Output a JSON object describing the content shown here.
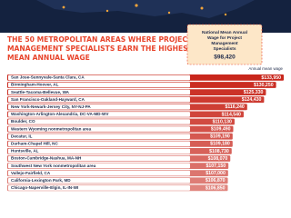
{
  "chart_data": {
    "type": "bar",
    "orientation": "horizontal",
    "title": "THE 50 METROPOLITAN AREAS WHERE PROJECT MANAGEMENT SPECIALISTS EARN THE HIGHEST MEAN ANNUAL WAGE",
    "callout": {
      "text": "National Mean Annual Wage for Project Management Specialists",
      "value": 98420,
      "value_label": "$98,420"
    },
    "value_axis_label": "Annual mean wage",
    "categories": [
      "San Jose-Sunnyvale-Santa Clara, CA",
      "Birmingham-Hoover, AL",
      "Seattle-Tacoma-Bellevue, WA",
      "San Francisco-Oakland-Hayward, CA",
      "New York-Newark-Jersey City, NY-NJ-PA",
      "Washington-Arlington-Alexandria, DC-VA-MD-WV",
      "Boulder, CO",
      "Western Wyoming nonmetropolitan area",
      "Decatur, IL",
      "Durham-Chapel Hill, NC",
      "Huntsville, AL",
      "Boston-Cambridge-Nashua, MA-NH",
      "Southwest New York nonmetropolitan area",
      "Vallejo-Fairfield, CA",
      "California-Lexington Park, MD",
      "Chicago-Naperville-Elgin, IL-IN-WI"
    ],
    "values": [
      133950,
      130250,
      125330,
      124430,
      116240,
      114540,
      110130,
      109490,
      109190,
      109180,
      108730,
      108070,
      107150,
      107000,
      106870,
      106850
    ],
    "value_labels": [
      "$133,950",
      "$130,250",
      "$125,330",
      "$124,430",
      "$116,240",
      "$114,540",
      "$110,130",
      "$109,490",
      "$109,190",
      "$109,180",
      "$108,730",
      "$108,070",
      "$107,150",
      "$107,000",
      "$106,870",
      "$106,850"
    ],
    "color": "#c8261b"
  }
}
